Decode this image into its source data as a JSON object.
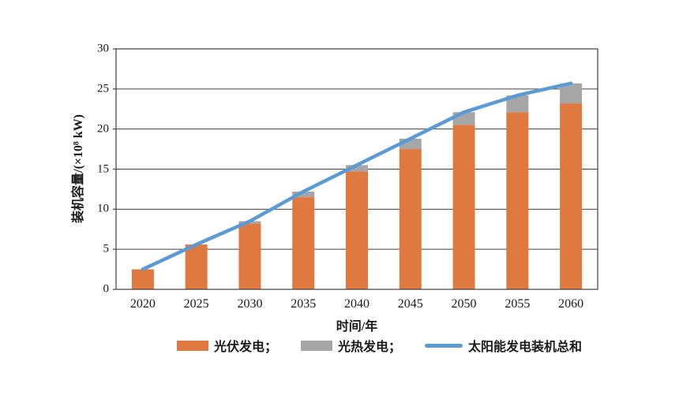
{
  "chart_data": {
    "type": "bar",
    "subtype": "stacked-bars-with-line-overlay",
    "categories": [
      "2020",
      "2025",
      "2030",
      "2035",
      "2040",
      "2045",
      "2050",
      "2055",
      "2060"
    ],
    "series": [
      {
        "name": "光伏发电",
        "type": "bar",
        "color": "#E0793F",
        "values": [
          2.5,
          5.6,
          8.2,
          11.5,
          14.7,
          17.5,
          20.5,
          22.1,
          23.2
        ]
      },
      {
        "name": "光热发电",
        "type": "bar",
        "color": "#A6A6A6",
        "values": [
          0,
          0,
          0.3,
          0.7,
          0.8,
          1.3,
          1.6,
          2.1,
          2.5
        ]
      },
      {
        "name": "太阳能发电装机总和",
        "type": "line",
        "color": "#5B9BD5",
        "values": [
          2.5,
          5.6,
          8.5,
          12.2,
          15.5,
          18.8,
          22.1,
          24.2,
          25.7
        ]
      }
    ],
    "title": "",
    "xlabel": "时间/年",
    "ylabel": "装机容量/(×10⁸ kW)",
    "ylim": [
      0,
      30
    ],
    "ytick_step": 5,
    "yticks": [
      "0",
      "5",
      "10",
      "15",
      "20",
      "25",
      "30"
    ],
    "grid": "horizontal",
    "legend_position": "bottom"
  },
  "legend": {
    "items": [
      {
        "label": "光伏发电；",
        "swatch": "bar"
      },
      {
        "label": "光热发电；",
        "swatch": "bar"
      },
      {
        "label": "太阳能发电装机总和",
        "swatch": "line"
      }
    ]
  },
  "colors": {
    "axis": "#404040",
    "text": "#1a1a1a",
    "background": "#ffffff"
  }
}
